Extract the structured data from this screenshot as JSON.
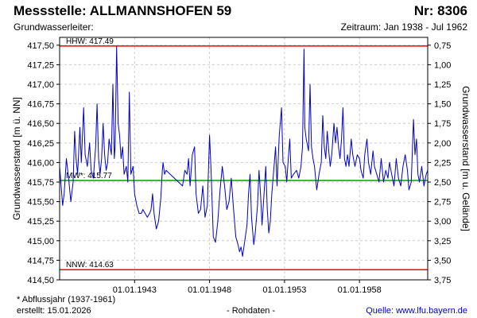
{
  "header": {
    "station_label": "Messstelle: ALLMANNSHOFEN 59",
    "number_label": "Nr: 8306",
    "aquifer_label": "Grundwasserleiter:",
    "period_label": "Zeitraum: Jan 1938 - Jul 1962"
  },
  "footer": {
    "note": "* Abflussjahr (1937-1961)",
    "created": "erstellt:  15.01.2026",
    "raw": "- Rohdaten -",
    "source": "Quelle: www.lfu.bayern.de"
  },
  "colors": {
    "series": "#0000cc",
    "extremes": "#ff0000",
    "mean": "#00a000",
    "grid": "#cccccc"
  },
  "chart_data": {
    "type": "line",
    "ylabel": "Grundwasserstand [m ü. NN]",
    "y2label": "Grundwasserstand [m u. Gelände]",
    "ylim": [
      414.5,
      417.6
    ],
    "xlim": [
      1938.0,
      1962.55
    ],
    "yticks": [
      {
        "value": 417.5,
        "label": "417,50"
      },
      {
        "value": 417.25,
        "label": "417,25"
      },
      {
        "value": 417.0,
        "label": "417,00"
      },
      {
        "value": 416.75,
        "label": "416,75"
      },
      {
        "value": 416.5,
        "label": "416,50"
      },
      {
        "value": 416.25,
        "label": "416,25"
      },
      {
        "value": 416.0,
        "label": "416,00"
      },
      {
        "value": 415.75,
        "label": "415,75"
      },
      {
        "value": 415.5,
        "label": "415,50"
      },
      {
        "value": 415.25,
        "label": "415,25"
      },
      {
        "value": 415.0,
        "label": "415,00"
      },
      {
        "value": 414.75,
        "label": "414,75"
      },
      {
        "value": 414.5,
        "label": "414,50"
      }
    ],
    "y2ticks": [
      {
        "value": 417.5,
        "label": "0,75"
      },
      {
        "value": 417.25,
        "label": "1,00"
      },
      {
        "value": 417.0,
        "label": "1,25"
      },
      {
        "value": 416.75,
        "label": "1,50"
      },
      {
        "value": 416.5,
        "label": "1,75"
      },
      {
        "value": 416.25,
        "label": "2,00"
      },
      {
        "value": 416.0,
        "label": "2,25"
      },
      {
        "value": 415.75,
        "label": "2,50"
      },
      {
        "value": 415.5,
        "label": "2,75"
      },
      {
        "value": 415.25,
        "label": "3,00"
      },
      {
        "value": 415.0,
        "label": "3,25"
      },
      {
        "value": 414.75,
        "label": "3,50"
      },
      {
        "value": 414.5,
        "label": "3,75"
      }
    ],
    "xticks": [
      {
        "value": 1943.0,
        "label": "01.01.1943"
      },
      {
        "value": 1948.0,
        "label": "01.01.1948"
      },
      {
        "value": 1953.0,
        "label": "01.01.1953"
      },
      {
        "value": 1958.0,
        "label": "01.01.1958"
      }
    ],
    "reference_lines": [
      {
        "key": "hhw",
        "label": "HHW: 417.49",
        "value": 417.49,
        "color": "#ff0000"
      },
      {
        "key": "mw",
        "label": "MW*: 415.77",
        "value": 415.77,
        "color": "#00a000"
      },
      {
        "key": "nnw",
        "label": "NNW: 414.63",
        "value": 414.63,
        "color": "#ff0000"
      }
    ],
    "grid": true,
    "series": [
      {
        "color": "#0000cc",
        "points": [
          [
            1938.0,
            415.95
          ],
          [
            1938.1,
            415.7
          ],
          [
            1938.2,
            415.45
          ],
          [
            1938.3,
            415.6
          ],
          [
            1938.45,
            416.05
          ],
          [
            1938.6,
            415.8
          ],
          [
            1938.75,
            415.5
          ],
          [
            1938.9,
            415.75
          ],
          [
            1939.0,
            416.4
          ],
          [
            1939.1,
            416.05
          ],
          [
            1939.2,
            415.85
          ],
          [
            1939.35,
            416.45
          ],
          [
            1939.45,
            416.0
          ],
          [
            1939.6,
            416.7
          ],
          [
            1939.7,
            416.1
          ],
          [
            1939.85,
            415.95
          ],
          [
            1940.0,
            416.25
          ],
          [
            1940.1,
            415.9
          ],
          [
            1940.25,
            415.8
          ],
          [
            1940.4,
            416.2
          ],
          [
            1940.5,
            416.75
          ],
          [
            1940.6,
            416.05
          ],
          [
            1940.7,
            415.85
          ],
          [
            1940.8,
            416.05
          ],
          [
            1940.9,
            416.5
          ],
          [
            1941.0,
            416.1
          ],
          [
            1941.1,
            415.9
          ],
          [
            1941.2,
            416.0
          ],
          [
            1941.3,
            416.3
          ],
          [
            1941.45,
            416.1
          ],
          [
            1941.55,
            417.0
          ],
          [
            1941.65,
            416.05
          ],
          [
            1941.7,
            416.2
          ],
          [
            1941.8,
            417.48
          ],
          [
            1941.9,
            416.5
          ],
          [
            1942.0,
            416.35
          ],
          [
            1942.1,
            416.05
          ],
          [
            1942.2,
            416.2
          ],
          [
            1942.3,
            415.85
          ],
          [
            1942.45,
            415.95
          ],
          [
            1942.55,
            415.75
          ],
          [
            1942.65,
            416.9
          ],
          [
            1942.75,
            415.85
          ],
          [
            1942.9,
            415.95
          ],
          [
            1943.0,
            415.6
          ],
          [
            1943.15,
            415.45
          ],
          [
            1943.3,
            415.35
          ],
          [
            1943.45,
            415.35
          ],
          [
            1943.55,
            415.4
          ],
          [
            1943.7,
            415.35
          ],
          [
            1943.85,
            415.3
          ],
          [
            1944.0,
            415.35
          ],
          [
            1944.1,
            415.4
          ],
          [
            1944.2,
            415.6
          ],
          [
            1944.3,
            415.35
          ],
          [
            1944.45,
            415.15
          ],
          [
            1944.6,
            415.25
          ],
          [
            1944.75,
            415.55
          ],
          [
            1944.85,
            415.9
          ],
          [
            1944.9,
            416.0
          ],
          [
            1945.0,
            415.85
          ],
          [
            1945.1,
            415.9
          ],
          [
            1946.2,
            415.7
          ],
          [
            1946.35,
            415.9
          ],
          [
            1946.5,
            415.85
          ],
          [
            1946.6,
            416.05
          ],
          [
            1946.7,
            415.7
          ],
          [
            1946.85,
            416.1
          ],
          [
            1947.0,
            416.2
          ],
          [
            1947.1,
            415.6
          ],
          [
            1947.25,
            415.35
          ],
          [
            1947.4,
            415.4
          ],
          [
            1947.55,
            415.7
          ],
          [
            1947.7,
            415.3
          ],
          [
            1947.85,
            415.45
          ],
          [
            1948.0,
            416.35
          ],
          [
            1948.1,
            415.9
          ],
          [
            1948.25,
            415.05
          ],
          [
            1948.4,
            414.98
          ],
          [
            1948.55,
            415.25
          ],
          [
            1948.7,
            415.65
          ],
          [
            1948.85,
            415.95
          ],
          [
            1949.0,
            415.7
          ],
          [
            1949.15,
            415.4
          ],
          [
            1949.3,
            415.5
          ],
          [
            1949.45,
            415.8
          ],
          [
            1949.6,
            415.4
          ],
          [
            1949.75,
            415.05
          ],
          [
            1949.9,
            414.95
          ],
          [
            1950.0,
            414.86
          ],
          [
            1950.1,
            414.92
          ],
          [
            1950.2,
            414.8
          ],
          [
            1950.35,
            415.0
          ],
          [
            1950.5,
            415.2
          ],
          [
            1950.6,
            415.6
          ],
          [
            1950.7,
            415.85
          ],
          [
            1950.8,
            415.3
          ],
          [
            1950.95,
            414.95
          ],
          [
            1951.05,
            415.1
          ],
          [
            1951.2,
            415.45
          ],
          [
            1951.3,
            415.9
          ],
          [
            1951.4,
            415.6
          ],
          [
            1951.5,
            415.2
          ],
          [
            1951.6,
            415.5
          ],
          [
            1951.75,
            415.95
          ],
          [
            1951.85,
            415.4
          ],
          [
            1951.95,
            415.1
          ],
          [
            1952.05,
            415.25
          ],
          [
            1952.15,
            415.6
          ],
          [
            1952.3,
            415.95
          ],
          [
            1952.4,
            416.2
          ],
          [
            1952.5,
            415.7
          ],
          [
            1952.65,
            416.35
          ],
          [
            1952.8,
            416.7
          ],
          [
            1952.9,
            416.0
          ],
          [
            1953.05,
            415.95
          ],
          [
            1953.15,
            415.75
          ],
          [
            1953.25,
            416.05
          ],
          [
            1953.35,
            416.3
          ],
          [
            1953.45,
            415.8
          ],
          [
            1953.6,
            415.85
          ],
          [
            1953.8,
            415.9
          ],
          [
            1953.95,
            415.8
          ],
          [
            1954.1,
            415.95
          ],
          [
            1954.2,
            416.2
          ],
          [
            1954.3,
            417.45
          ],
          [
            1954.35,
            416.45
          ],
          [
            1954.45,
            416.3
          ],
          [
            1954.6,
            416.15
          ],
          [
            1954.7,
            417.0
          ],
          [
            1954.8,
            416.2
          ],
          [
            1954.9,
            416.05
          ],
          [
            1955.0,
            415.95
          ],
          [
            1955.15,
            415.65
          ],
          [
            1955.3,
            415.85
          ],
          [
            1955.45,
            416.0
          ],
          [
            1955.55,
            416.6
          ],
          [
            1955.65,
            416.2
          ],
          [
            1955.75,
            416.05
          ],
          [
            1955.85,
            416.4
          ],
          [
            1955.95,
            416.15
          ],
          [
            1956.05,
            415.95
          ],
          [
            1956.15,
            416.1
          ],
          [
            1956.3,
            416.5
          ],
          [
            1956.4,
            416.25
          ],
          [
            1956.5,
            416.45
          ],
          [
            1956.6,
            416.2
          ],
          [
            1956.7,
            416.05
          ],
          [
            1956.8,
            416.3
          ],
          [
            1956.9,
            416.7
          ],
          [
            1957.0,
            416.05
          ],
          [
            1957.1,
            415.95
          ],
          [
            1957.2,
            416.1
          ],
          [
            1957.3,
            415.95
          ],
          [
            1957.45,
            416.3
          ],
          [
            1957.55,
            416.1
          ],
          [
            1957.7,
            415.95
          ],
          [
            1957.85,
            416.1
          ],
          [
            1958.0,
            416.05
          ],
          [
            1958.1,
            415.9
          ],
          [
            1958.25,
            415.8
          ],
          [
            1958.35,
            416.1
          ],
          [
            1958.5,
            416.3
          ],
          [
            1958.6,
            416.0
          ],
          [
            1958.75,
            415.85
          ],
          [
            1958.9,
            416.15
          ],
          [
            1959.0,
            415.95
          ],
          [
            1959.15,
            415.85
          ],
          [
            1959.3,
            415.75
          ],
          [
            1959.45,
            416.05
          ],
          [
            1959.6,
            415.75
          ],
          [
            1959.75,
            415.9
          ],
          [
            1959.9,
            415.8
          ],
          [
            1960.0,
            416.0
          ],
          [
            1960.15,
            415.85
          ],
          [
            1960.3,
            415.7
          ],
          [
            1960.45,
            416.05
          ],
          [
            1960.6,
            415.8
          ],
          [
            1960.75,
            415.7
          ],
          [
            1960.9,
            415.95
          ],
          [
            1961.05,
            416.1
          ],
          [
            1961.2,
            415.9
          ],
          [
            1961.3,
            415.65
          ],
          [
            1961.45,
            415.75
          ],
          [
            1961.6,
            416.55
          ],
          [
            1961.7,
            416.1
          ],
          [
            1961.8,
            416.3
          ],
          [
            1961.9,
            415.85
          ],
          [
            1962.0,
            415.75
          ],
          [
            1962.15,
            415.95
          ],
          [
            1962.3,
            415.7
          ],
          [
            1962.45,
            415.85
          ],
          [
            1962.55,
            415.9
          ]
        ]
      }
    ]
  }
}
